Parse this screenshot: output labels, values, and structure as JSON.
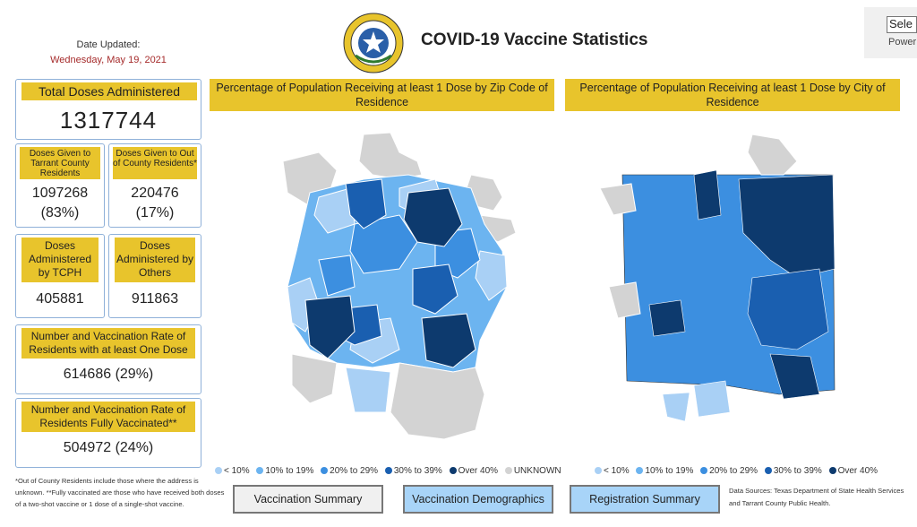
{
  "header": {
    "date_label": "Date Updated:",
    "date_value": "Wednesday, May 19, 2021",
    "title": "COVID-19 Vaccine Statistics",
    "slicer_value": "Sele",
    "slicer_caption": "Power"
  },
  "kpis": {
    "total": {
      "label": "Total Doses Administered",
      "value": "1317744"
    },
    "tarrant": {
      "label": "Doses Given to Tarrant County Residents",
      "value": "1097268",
      "pct": "(83%)"
    },
    "out_of_county": {
      "label": "Doses Given to Out of County Residents*",
      "value": "220476",
      "pct": "(17%)"
    },
    "tcph": {
      "label": "Doses Administered by TCPH",
      "value": "405881"
    },
    "others": {
      "label": "Doses Administered by Others",
      "value": "911863"
    },
    "one_dose": {
      "label": "Number and Vaccination Rate of Residents with at least One Dose",
      "value": "614686 (29%)"
    },
    "fully": {
      "label": "Number and Vaccination Rate of Residents Fully Vaccinated**",
      "value": "504972 (24%)"
    }
  },
  "footnote": "*Out of County Residents include those where the address is unknown. **Fully vaccinated are those who have received both doses of a two-shot vaccine or 1 dose of a single-shot vaccine.",
  "maps": {
    "zip": {
      "title": "Percentage of Population Receiving at least 1 Dose by Zip Code of Residence"
    },
    "city": {
      "title": "Percentage of Population Receiving at least 1 Dose by City of Residence"
    }
  },
  "legend": {
    "zip": [
      {
        "label": "< 10%",
        "color": "#a9d0f5"
      },
      {
        "label": "10% to 19%",
        "color": "#6cb4f0"
      },
      {
        "label": "20% to 29%",
        "color": "#3c8fe0"
      },
      {
        "label": "30% to 39%",
        "color": "#1a5fb0"
      },
      {
        "label": "Over 40%",
        "color": "#0d3a6e"
      },
      {
        "label": "UNKNOWN",
        "color": "#d3d3d3"
      }
    ],
    "city": [
      {
        "label": "< 10%",
        "color": "#a9d0f5"
      },
      {
        "label": "10% to 19%",
        "color": "#6cb4f0"
      },
      {
        "label": "20% to 29%",
        "color": "#3c8fe0"
      },
      {
        "label": "30% to 39%",
        "color": "#1a5fb0"
      },
      {
        "label": "Over 40%",
        "color": "#0d3a6e"
      }
    ]
  },
  "nav": {
    "summary": "Vaccination Summary",
    "demographics": "Vaccination Demographics",
    "registration": "Registration Summary"
  },
  "sources": "Data Sources: Texas Department of State Health Services and Tarrant County Public Health."
}
